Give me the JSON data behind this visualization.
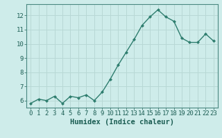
{
  "x": [
    0,
    1,
    2,
    3,
    4,
    5,
    6,
    7,
    8,
    9,
    10,
    11,
    12,
    13,
    14,
    15,
    16,
    17,
    18,
    19,
    20,
    21,
    22,
    23
  ],
  "y": [
    5.8,
    6.1,
    6.0,
    6.3,
    5.8,
    6.3,
    6.2,
    6.4,
    6.0,
    6.6,
    7.5,
    8.5,
    9.4,
    10.3,
    11.3,
    11.9,
    12.4,
    11.9,
    11.6,
    10.4,
    10.1,
    10.1,
    10.7,
    10.2
  ],
  "line_color": "#2e7d6e",
  "marker": "D",
  "marker_size": 2,
  "bg_color": "#ceecea",
  "grid_color": "#b8d8d5",
  "xlabel": "Humidex (Indice chaleur)",
  "ylabel": "",
  "ylim": [
    5.5,
    12.8
  ],
  "xlim": [
    -0.5,
    23.5
  ],
  "yticks": [
    6,
    7,
    8,
    9,
    10,
    11,
    12
  ],
  "xticks": [
    0,
    1,
    2,
    3,
    4,
    5,
    6,
    7,
    8,
    9,
    10,
    11,
    12,
    13,
    14,
    15,
    16,
    17,
    18,
    19,
    20,
    21,
    22,
    23
  ],
  "xlabel_color": "#1a5c52",
  "tick_color": "#1a5c52",
  "axis_color": "#4a8880",
  "tick_label_fontsize": 6.5,
  "xlabel_fontsize": 7.5,
  "linewidth": 1.0
}
